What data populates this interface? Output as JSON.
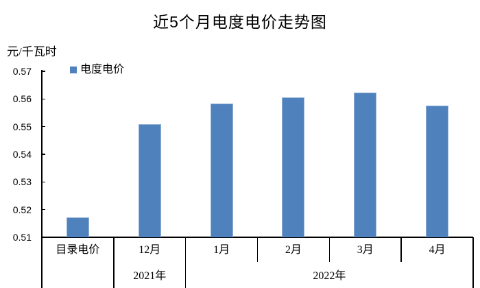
{
  "chart_data": {
    "type": "bar",
    "title": "近5个月电度电价走势图",
    "unit_label": "元/千瓦时",
    "legend": [
      {
        "label": "电度电价",
        "color": "#4f81bd"
      }
    ],
    "legend_position": "top-left-inside",
    "categories": [
      "目录电价",
      "12月",
      "1月",
      "2月",
      "3月",
      "4月"
    ],
    "values": [
      0.5172,
      0.5508,
      0.5583,
      0.5607,
      0.5622,
      0.5576
    ],
    "series": [
      {
        "name": "电度电价",
        "values": [
          0.5172,
          0.5508,
          0.5583,
          0.5607,
          0.5622,
          0.5576
        ]
      }
    ],
    "year_groups": [
      {
        "label": "",
        "start": 0,
        "end": 1
      },
      {
        "label": "2021年",
        "start": 1,
        "end": 2
      },
      {
        "label": "2022年",
        "start": 2,
        "end": 6
      }
    ],
    "xlabel": "",
    "ylabel": "元/千瓦时",
    "ylim": [
      0.51,
      0.57
    ],
    "yticks": [
      "0.51",
      "0.52",
      "0.53",
      "0.54",
      "0.55",
      "0.56",
      "0.57"
    ],
    "grid": false,
    "bar_color": "#4f81bd",
    "bar_border_color": "#95b3d7",
    "axis_color": "#000000"
  }
}
